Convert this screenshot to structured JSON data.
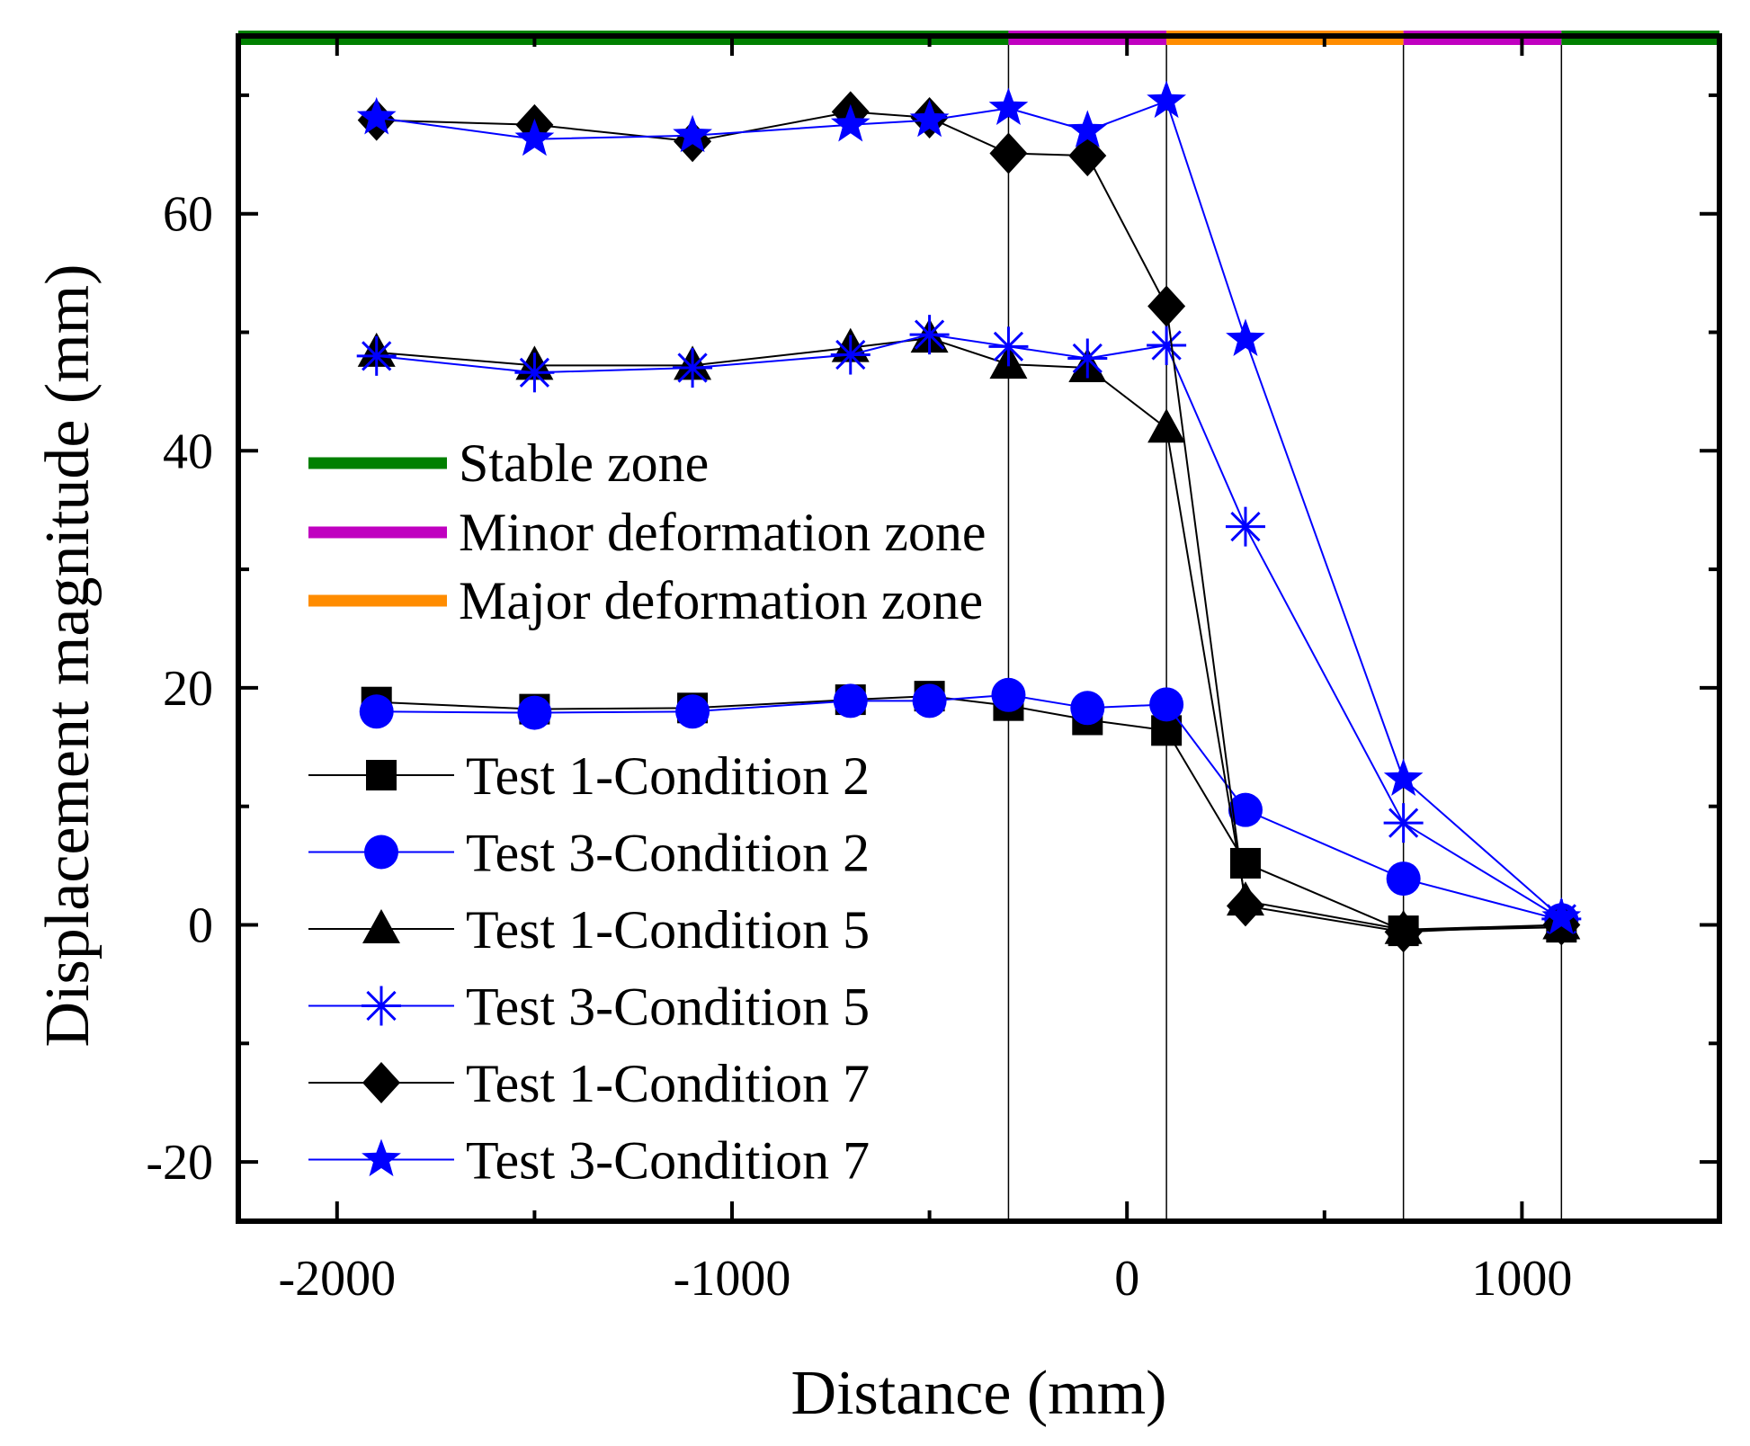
{
  "chart_data": {
    "type": "line",
    "title": "",
    "xlabel": "Distance (mm)",
    "ylabel": "Displacement magnitude (mm)",
    "xlim": [
      -2250,
      1500
    ],
    "ylim": [
      -25,
      75
    ],
    "grid": false,
    "x_ticks": [
      -2000,
      -1000,
      0,
      1000
    ],
    "x_tick_labels": [
      "-2000",
      "-1000",
      "0",
      "1000"
    ],
    "y_ticks": [
      -20,
      0,
      20,
      40,
      60
    ],
    "y_tick_labels": [
      "-20",
      "0",
      "20",
      "40",
      "60"
    ],
    "zone_boundaries": [
      -300,
      100,
      700,
      1100
    ],
    "zones": [
      {
        "name": "Stable zone",
        "from": -2250,
        "to": -300,
        "color": "#008000"
      },
      {
        "name": "Minor deformation zone",
        "from": -300,
        "to": 100,
        "color": "#c000c0"
      },
      {
        "name": "Major deformation zone",
        "from": 100,
        "to": 700,
        "color": "#ff8c00"
      },
      {
        "name": "Minor deformation zone",
        "from": 700,
        "to": 1100,
        "color": "#c000c0"
      },
      {
        "name": "Stable zone",
        "from": 1100,
        "to": 1500,
        "color": "#008000"
      }
    ],
    "zone_legend": [
      {
        "label": "Stable zone",
        "color": "#008000"
      },
      {
        "label": "Minor deformation zone",
        "color": "#c000c0"
      },
      {
        "label": "Major deformation zone",
        "color": "#ff8c00"
      }
    ],
    "x": [
      -1900,
      -1500,
      -1100,
      -700,
      -500,
      -300,
      -100,
      100,
      300,
      700,
      1100
    ],
    "series": [
      {
        "name": "Test 1-Condition 2",
        "color": "#000000",
        "marker": "square",
        "values": [
          18.8,
          18.2,
          18.3,
          19.0,
          19.3,
          18.5,
          17.3,
          16.4,
          5.2,
          -0.5,
          -0.2
        ]
      },
      {
        "name": "Test 3-Condition 2",
        "color": "#0000ff",
        "marker": "circle",
        "values": [
          18.0,
          17.9,
          18.0,
          18.9,
          18.9,
          19.4,
          18.3,
          18.6,
          9.7,
          3.9,
          0.4
        ]
      },
      {
        "name": "Test 1-Condition 5",
        "color": "#000000",
        "marker": "triangle",
        "values": [
          48.3,
          47.2,
          47.2,
          48.7,
          49.5,
          47.3,
          47.0,
          41.9,
          2.0,
          -0.4,
          0.0
        ]
      },
      {
        "name": "Test 3-Condition 5",
        "color": "#0000ff",
        "marker": "asterisk",
        "values": [
          48.0,
          46.6,
          47.0,
          48.1,
          49.8,
          48.8,
          47.8,
          48.9,
          33.6,
          8.6,
          0.5
        ]
      },
      {
        "name": "Test 1-Condition 7",
        "color": "#000000",
        "marker": "diamond",
        "values": [
          67.9,
          67.5,
          66.1,
          68.6,
          68.1,
          65.1,
          64.9,
          52.2,
          1.6,
          -0.6,
          0.0
        ]
      },
      {
        "name": "Test 3-Condition 7",
        "color": "#0000ff",
        "marker": "star",
        "values": [
          68.1,
          66.3,
          66.6,
          67.5,
          67.9,
          68.9,
          67.0,
          69.5,
          49.4,
          12.3,
          0.6
        ]
      }
    ]
  }
}
